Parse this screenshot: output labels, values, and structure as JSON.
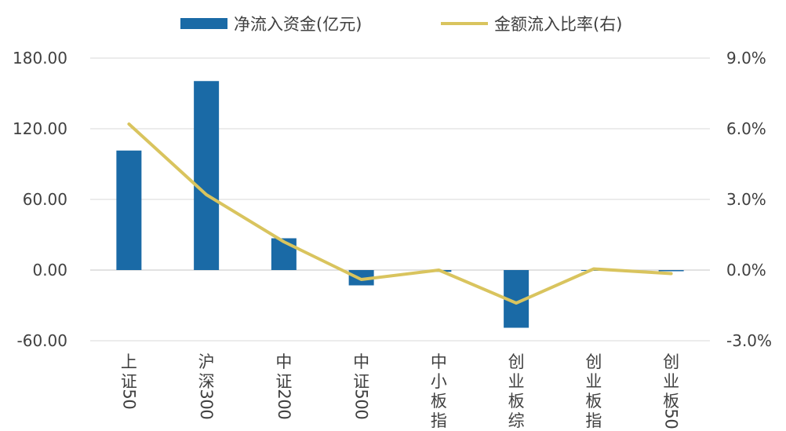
{
  "chart_data": {
    "type": "bar",
    "categories": [
      "上证50",
      "沪深300",
      "中证200",
      "中证500",
      "中小板指",
      "创业板综",
      "创业板指",
      "创业板50"
    ],
    "series": [
      {
        "name": "净流入资金(亿元)",
        "type": "bar",
        "axis": "left",
        "color": "#1a6aa6",
        "values": [
          101.5,
          160.5,
          27.0,
          -13.0,
          -1.5,
          -49.0,
          -0.5,
          -1.0
        ]
      },
      {
        "name": "金额流入比率(右)",
        "type": "line",
        "axis": "right",
        "color": "#d9c45e",
        "values": [
          6.2,
          3.2,
          1.2,
          -0.4,
          0.0,
          -1.4,
          0.05,
          -0.15
        ]
      }
    ],
    "y_left": {
      "ylim": [
        -60,
        180
      ],
      "ticks": [
        -60,
        0,
        60,
        120,
        180
      ],
      "tick_labels": [
        "-60.00",
        "0.00",
        "60.00",
        "120.00",
        "180.00"
      ]
    },
    "y_right": {
      "ylim": [
        -3,
        9
      ],
      "ticks": [
        -3,
        0,
        3,
        6,
        9
      ],
      "tick_labels": [
        "-3.0%",
        "0.0%",
        "3.0%",
        "6.0%",
        "9.0%"
      ]
    },
    "grid": true,
    "legend": "top"
  }
}
